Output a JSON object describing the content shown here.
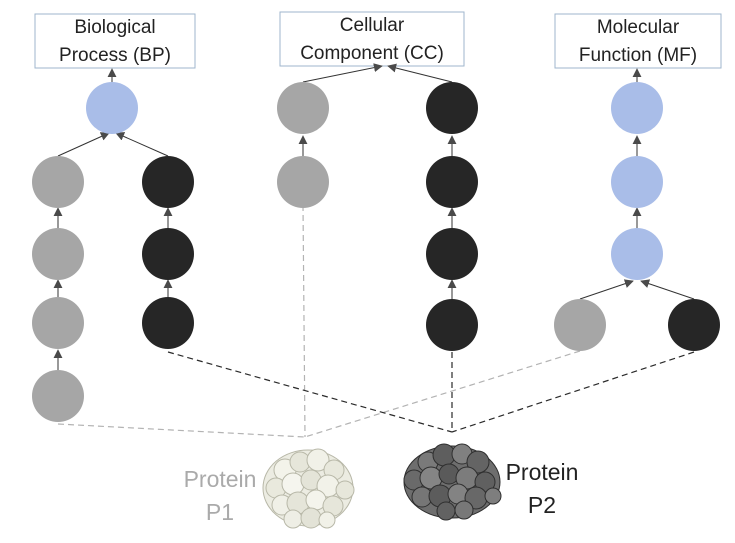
{
  "ontologies": {
    "bp": {
      "line1": "Biological",
      "line2": "Process (BP)"
    },
    "cc": {
      "line1": "Cellular",
      "line2": "Component (CC)"
    },
    "mf": {
      "line1": "Molecular",
      "line2": "Function (MF)"
    }
  },
  "proteins": {
    "p1": {
      "line1": "Protein",
      "line2": "P1",
      "color": "#aaaaaa"
    },
    "p2": {
      "line1": "Protein",
      "line2": "P2",
      "color": "#222222"
    }
  },
  "colors": {
    "p1_node": "#a6a6a6",
    "p2_node": "#262626",
    "shared_node": "#a9bde8",
    "box_border": "#9fb6cc"
  }
}
